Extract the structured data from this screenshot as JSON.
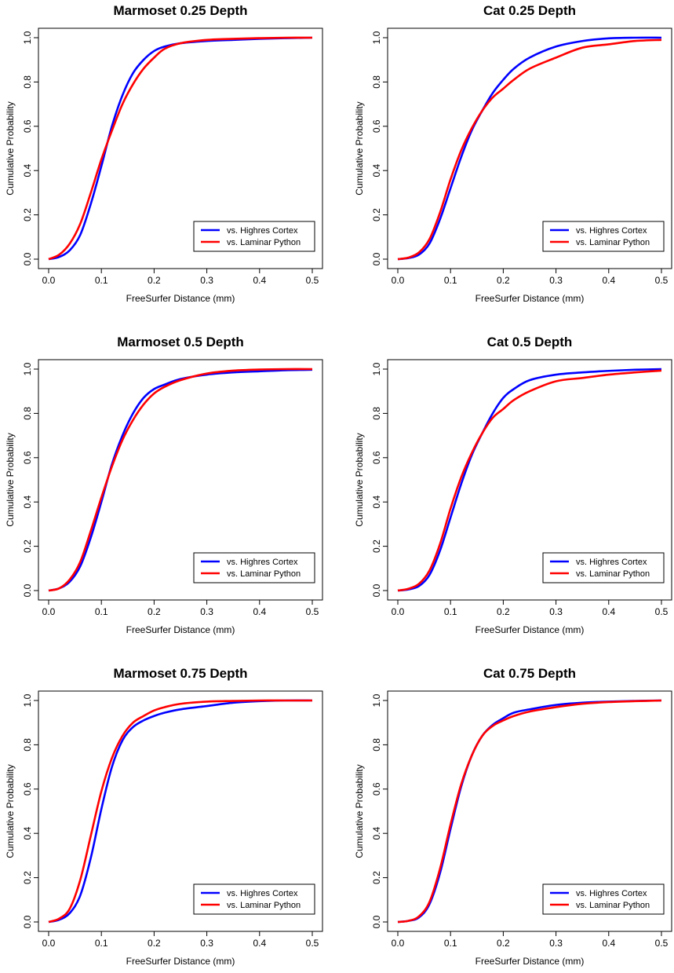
{
  "series_colors": {
    "blue": "#0000ff",
    "red": "#ff0000"
  },
  "chart_data": [
    {
      "type": "line",
      "title": "Marmoset 0.25 Depth",
      "xlabel": "FreeSurfer Distance (mm)",
      "ylabel": "Cumulative Probability",
      "xlim": [
        0,
        0.5
      ],
      "ylim": [
        0,
        1
      ],
      "xticks": [
        "0.0",
        "0.1",
        "0.2",
        "0.3",
        "0.4",
        "0.5"
      ],
      "yticks": [
        "0.0",
        "0.2",
        "0.4",
        "0.6",
        "0.8",
        "1.0"
      ],
      "legend": "bottom-right",
      "grid": false,
      "series": [
        {
          "name": "vs. Highres Cortex",
          "color": "#0000ff",
          "x": [
            0,
            0.02,
            0.04,
            0.06,
            0.08,
            0.1,
            0.12,
            0.14,
            0.16,
            0.18,
            0.2,
            0.22,
            0.25,
            0.3,
            0.35,
            0.4,
            0.45,
            0.5
          ],
          "y": [
            0,
            0.01,
            0.04,
            0.11,
            0.25,
            0.42,
            0.6,
            0.74,
            0.84,
            0.9,
            0.94,
            0.96,
            0.975,
            0.985,
            0.99,
            0.995,
            0.998,
            1.0
          ]
        },
        {
          "name": "vs. Laminar Python",
          "color": "#ff0000",
          "x": [
            0,
            0.02,
            0.04,
            0.06,
            0.08,
            0.1,
            0.12,
            0.14,
            0.16,
            0.18,
            0.2,
            0.22,
            0.25,
            0.3,
            0.35,
            0.4,
            0.45,
            0.5
          ],
          "y": [
            0,
            0.02,
            0.07,
            0.16,
            0.3,
            0.45,
            0.58,
            0.7,
            0.79,
            0.86,
            0.91,
            0.95,
            0.975,
            0.99,
            0.995,
            0.998,
            1.0,
            1.0
          ]
        }
      ]
    },
    {
      "type": "line",
      "title": "Cat 0.25 Depth",
      "xlabel": "FreeSurfer Distance (mm)",
      "ylabel": "Cumulative Probability",
      "xlim": [
        0,
        0.5
      ],
      "ylim": [
        0,
        1
      ],
      "xticks": [
        "0.0",
        "0.1",
        "0.2",
        "0.3",
        "0.4",
        "0.5"
      ],
      "yticks": [
        "0.0",
        "0.2",
        "0.4",
        "0.6",
        "0.8",
        "1.0"
      ],
      "legend": "bottom-right",
      "grid": false,
      "series": [
        {
          "name": "vs. Highres Cortex",
          "color": "#0000ff",
          "x": [
            0,
            0.02,
            0.04,
            0.06,
            0.08,
            0.1,
            0.12,
            0.14,
            0.16,
            0.18,
            0.2,
            0.22,
            0.25,
            0.3,
            0.35,
            0.4,
            0.45,
            0.5
          ],
          "y": [
            0,
            0.005,
            0.02,
            0.07,
            0.18,
            0.32,
            0.46,
            0.58,
            0.67,
            0.75,
            0.81,
            0.86,
            0.91,
            0.96,
            0.985,
            0.997,
            1.0,
            1.0
          ]
        },
        {
          "name": "vs. Laminar Python",
          "color": "#ff0000",
          "x": [
            0,
            0.02,
            0.04,
            0.06,
            0.08,
            0.1,
            0.12,
            0.14,
            0.16,
            0.18,
            0.2,
            0.22,
            0.25,
            0.3,
            0.35,
            0.4,
            0.45,
            0.5
          ],
          "y": [
            0,
            0.007,
            0.03,
            0.09,
            0.21,
            0.36,
            0.49,
            0.59,
            0.67,
            0.73,
            0.77,
            0.81,
            0.86,
            0.91,
            0.955,
            0.97,
            0.985,
            0.99
          ]
        }
      ]
    },
    {
      "type": "line",
      "title": "Marmoset 0.5 Depth",
      "xlabel": "FreeSurfer Distance (mm)",
      "ylabel": "Cumulative Probability",
      "xlim": [
        0,
        0.5
      ],
      "ylim": [
        0,
        1
      ],
      "xticks": [
        "0.0",
        "0.1",
        "0.2",
        "0.3",
        "0.4",
        "0.5"
      ],
      "yticks": [
        "0.0",
        "0.2",
        "0.4",
        "0.6",
        "0.8",
        "1.0"
      ],
      "legend": "bottom-right",
      "grid": false,
      "series": [
        {
          "name": "vs. Highres Cortex",
          "color": "#0000ff",
          "x": [
            0,
            0.02,
            0.04,
            0.06,
            0.08,
            0.1,
            0.12,
            0.14,
            0.16,
            0.18,
            0.2,
            0.22,
            0.25,
            0.3,
            0.35,
            0.4,
            0.45,
            0.5
          ],
          "y": [
            0,
            0.01,
            0.04,
            0.11,
            0.24,
            0.4,
            0.57,
            0.7,
            0.8,
            0.87,
            0.91,
            0.93,
            0.955,
            0.975,
            0.985,
            0.99,
            0.995,
            0.997
          ]
        },
        {
          "name": "vs. Laminar Python",
          "color": "#ff0000",
          "x": [
            0,
            0.02,
            0.04,
            0.06,
            0.08,
            0.1,
            0.12,
            0.14,
            0.16,
            0.18,
            0.2,
            0.22,
            0.25,
            0.3,
            0.35,
            0.4,
            0.45,
            0.5
          ],
          "y": [
            0,
            0.01,
            0.05,
            0.13,
            0.27,
            0.42,
            0.56,
            0.68,
            0.77,
            0.84,
            0.89,
            0.92,
            0.95,
            0.98,
            0.993,
            0.998,
            1.0,
            1.0
          ]
        }
      ]
    },
    {
      "type": "line",
      "title": "Cat 0.5 Depth",
      "xlabel": "FreeSurfer Distance (mm)",
      "ylabel": "Cumulative Probability",
      "xlim": [
        0,
        0.5
      ],
      "ylim": [
        0,
        1
      ],
      "xticks": [
        "0.0",
        "0.1",
        "0.2",
        "0.3",
        "0.4",
        "0.5"
      ],
      "yticks": [
        "0.0",
        "0.2",
        "0.4",
        "0.6",
        "0.8",
        "1.0"
      ],
      "legend": "bottom-right",
      "grid": false,
      "series": [
        {
          "name": "vs. Highres Cortex",
          "color": "#0000ff",
          "x": [
            0,
            0.02,
            0.04,
            0.06,
            0.08,
            0.1,
            0.12,
            0.14,
            0.16,
            0.18,
            0.2,
            0.22,
            0.25,
            0.3,
            0.35,
            0.4,
            0.45,
            0.5
          ],
          "y": [
            0,
            0.005,
            0.02,
            0.07,
            0.18,
            0.33,
            0.48,
            0.61,
            0.71,
            0.8,
            0.87,
            0.91,
            0.95,
            0.975,
            0.985,
            0.992,
            0.997,
            1.0
          ]
        },
        {
          "name": "vs. Laminar Python",
          "color": "#ff0000",
          "x": [
            0,
            0.02,
            0.04,
            0.06,
            0.08,
            0.1,
            0.12,
            0.14,
            0.16,
            0.18,
            0.2,
            0.22,
            0.25,
            0.3,
            0.35,
            0.4,
            0.45,
            0.5
          ],
          "y": [
            0,
            0.008,
            0.03,
            0.09,
            0.21,
            0.37,
            0.51,
            0.62,
            0.71,
            0.78,
            0.82,
            0.86,
            0.9,
            0.945,
            0.96,
            0.975,
            0.985,
            0.993
          ]
        }
      ]
    },
    {
      "type": "line",
      "title": "Marmoset 0.75 Depth",
      "xlabel": "FreeSurfer Distance (mm)",
      "ylabel": "Cumulative Probability",
      "xlim": [
        0,
        0.5
      ],
      "ylim": [
        0,
        1
      ],
      "xticks": [
        "0.0",
        "0.1",
        "0.2",
        "0.3",
        "0.4",
        "0.5"
      ],
      "yticks": [
        "0.0",
        "0.2",
        "0.4",
        "0.6",
        "0.8",
        "1.0"
      ],
      "legend": "bottom-right",
      "grid": false,
      "series": [
        {
          "name": "vs. Highres Cortex",
          "color": "#0000ff",
          "x": [
            0,
            0.02,
            0.04,
            0.06,
            0.08,
            0.1,
            0.12,
            0.14,
            0.16,
            0.18,
            0.2,
            0.22,
            0.25,
            0.3,
            0.35,
            0.4,
            0.45,
            0.5
          ],
          "y": [
            0,
            0.01,
            0.04,
            0.12,
            0.29,
            0.51,
            0.7,
            0.82,
            0.88,
            0.91,
            0.93,
            0.945,
            0.96,
            0.975,
            0.99,
            0.997,
            1.0,
            1.0
          ]
        },
        {
          "name": "vs. Laminar Python",
          "color": "#ff0000",
          "x": [
            0,
            0.02,
            0.04,
            0.06,
            0.08,
            0.1,
            0.12,
            0.14,
            0.16,
            0.18,
            0.2,
            0.22,
            0.25,
            0.3,
            0.35,
            0.4,
            0.45,
            0.5
          ],
          "y": [
            0,
            0.015,
            0.06,
            0.19,
            0.39,
            0.59,
            0.74,
            0.84,
            0.9,
            0.93,
            0.955,
            0.97,
            0.985,
            0.995,
            0.998,
            1.0,
            1.0,
            1.0
          ]
        }
      ]
    },
    {
      "type": "line",
      "title": "Cat 0.75 Depth",
      "xlabel": "FreeSurfer Distance (mm)",
      "ylabel": "Cumulative Probability",
      "xlim": [
        0,
        0.5
      ],
      "ylim": [
        0,
        1
      ],
      "xticks": [
        "0.0",
        "0.1",
        "0.2",
        "0.3",
        "0.4",
        "0.5"
      ],
      "yticks": [
        "0.0",
        "0.2",
        "0.4",
        "0.6",
        "0.8",
        "1.0"
      ],
      "legend": "bottom-right",
      "grid": false,
      "series": [
        {
          "name": "vs. Highres Cortex",
          "color": "#0000ff",
          "x": [
            0,
            0.02,
            0.04,
            0.06,
            0.08,
            0.1,
            0.12,
            0.14,
            0.16,
            0.18,
            0.2,
            0.22,
            0.25,
            0.3,
            0.35,
            0.4,
            0.45,
            0.5
          ],
          "y": [
            0,
            0.005,
            0.02,
            0.08,
            0.22,
            0.42,
            0.61,
            0.75,
            0.84,
            0.89,
            0.92,
            0.945,
            0.96,
            0.98,
            0.99,
            0.995,
            0.998,
            1.0
          ]
        },
        {
          "name": "vs. Laminar Python",
          "color": "#ff0000",
          "x": [
            0,
            0.02,
            0.04,
            0.06,
            0.08,
            0.1,
            0.12,
            0.14,
            0.16,
            0.18,
            0.2,
            0.22,
            0.25,
            0.3,
            0.35,
            0.4,
            0.45,
            0.5
          ],
          "y": [
            0,
            0.005,
            0.025,
            0.09,
            0.24,
            0.44,
            0.62,
            0.75,
            0.84,
            0.885,
            0.91,
            0.93,
            0.95,
            0.97,
            0.985,
            0.993,
            0.997,
            1.0
          ]
        }
      ]
    }
  ]
}
